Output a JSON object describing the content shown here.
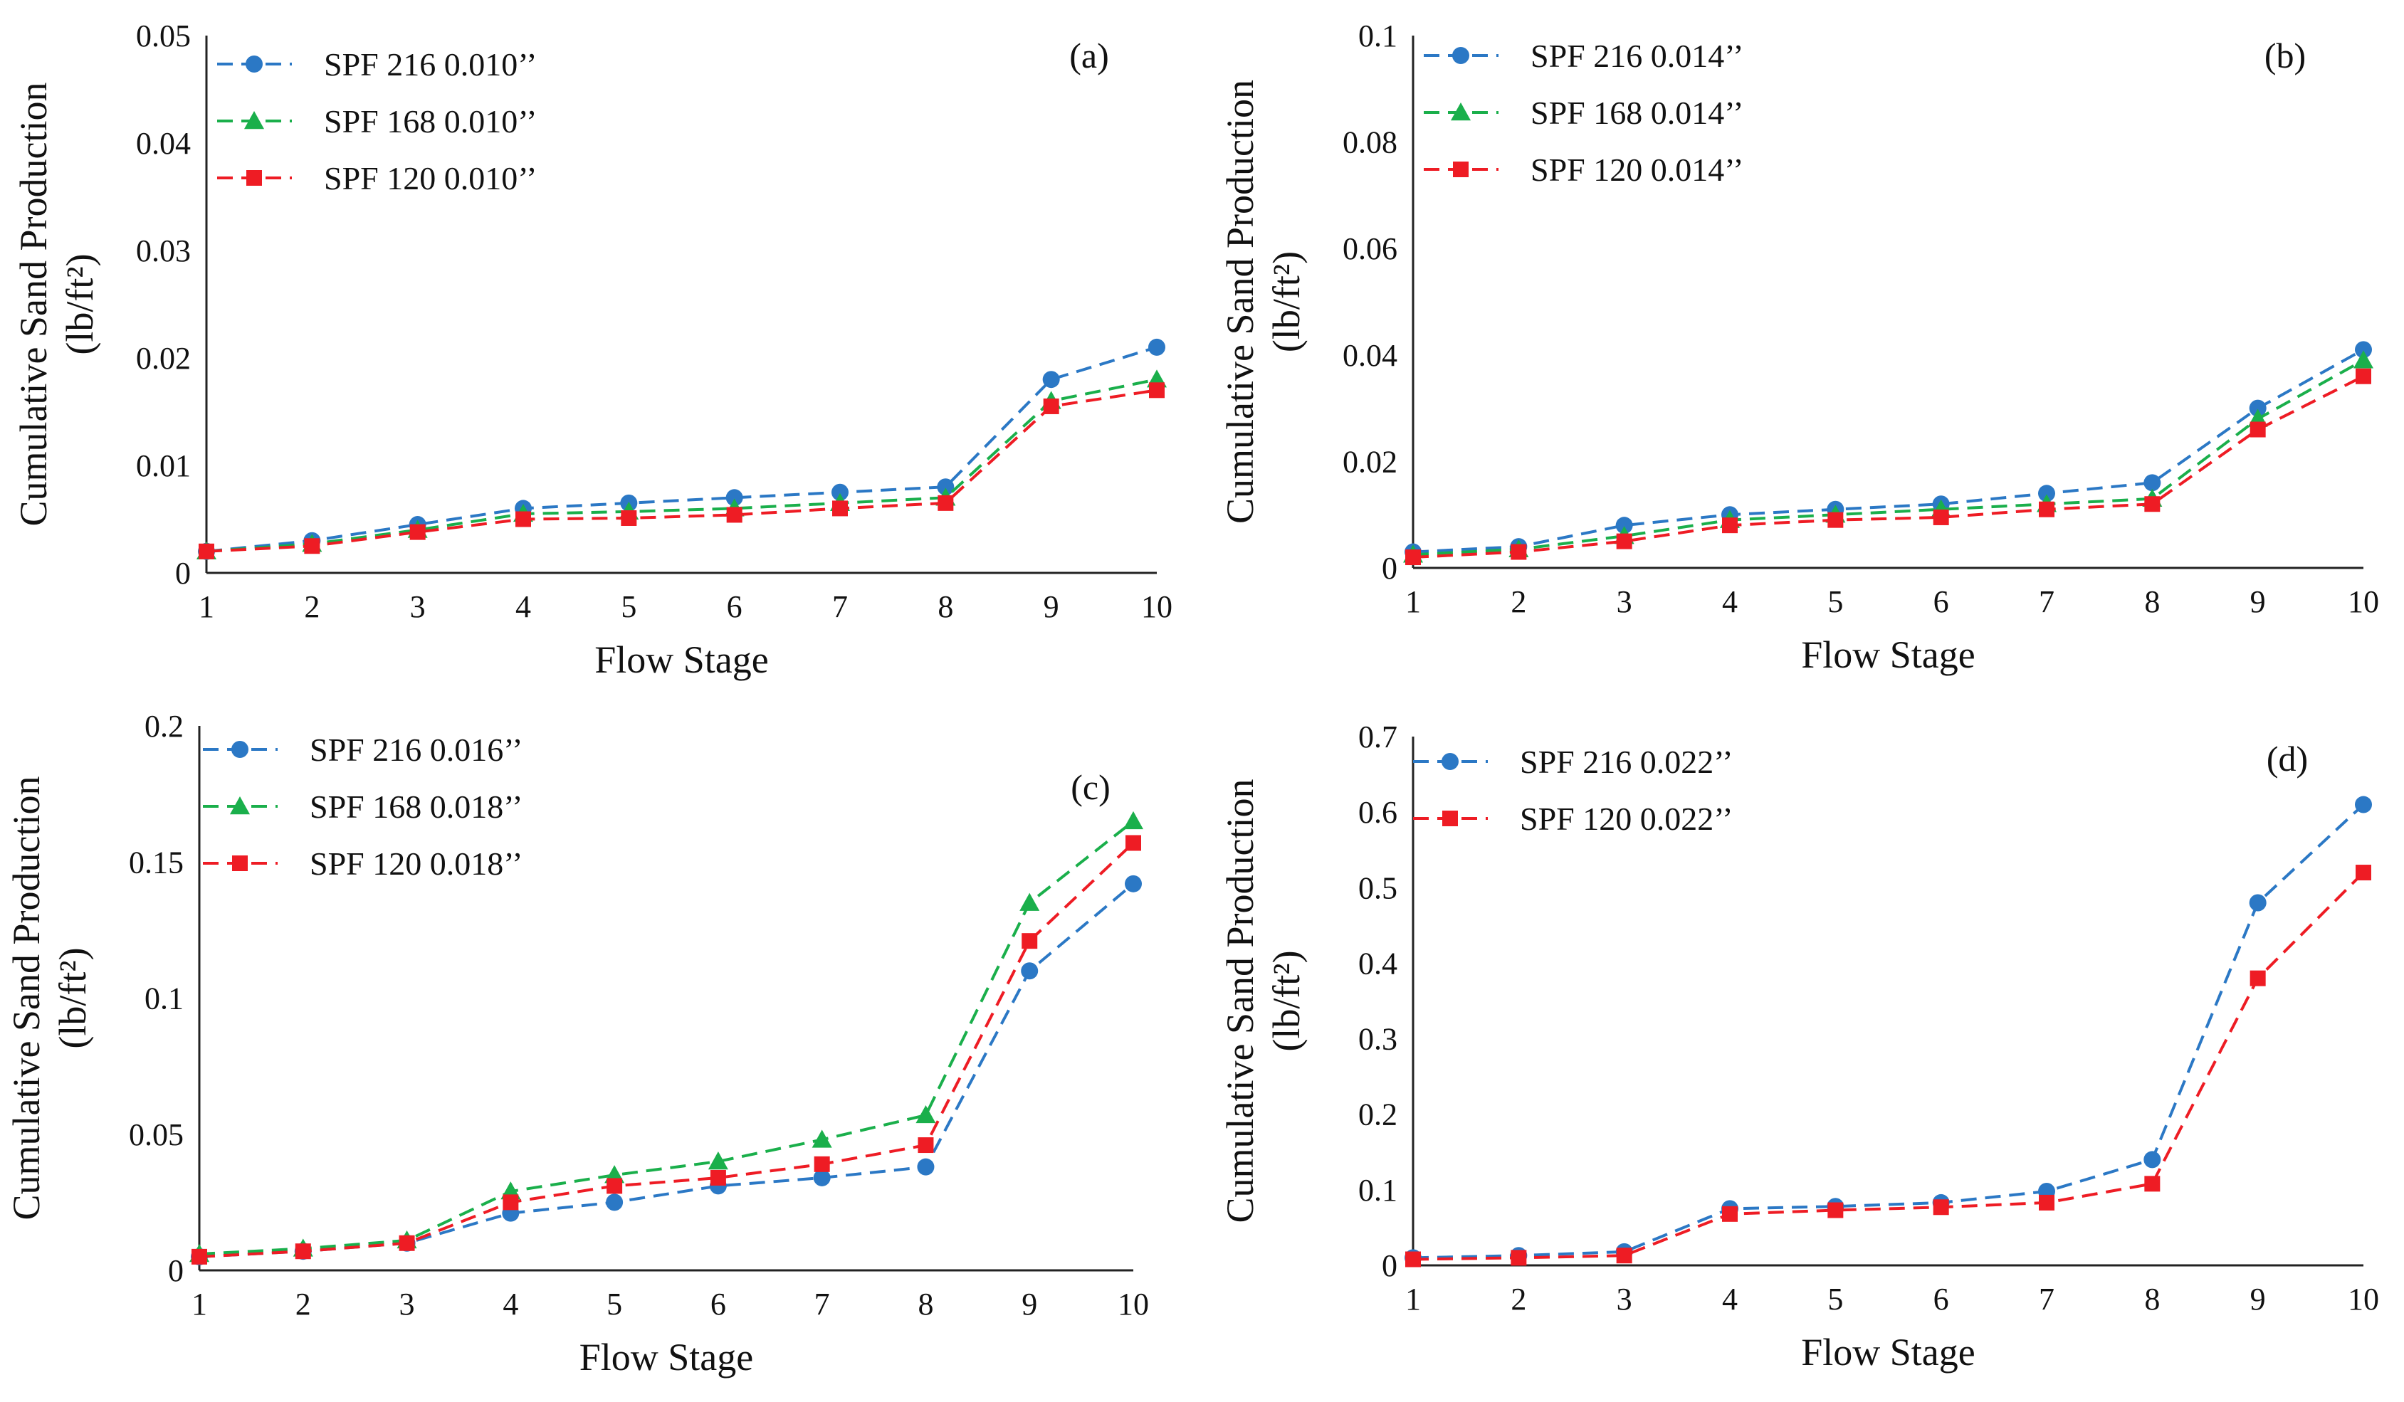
{
  "figure": "Cumulative sand production vs. flow stage",
  "colors": {
    "blue": "#2b78c5",
    "green": "#1aaf4b",
    "red": "#ee1c24"
  },
  "chart_data": [
    {
      "panel": "(a)",
      "type": "line",
      "xlabel": "Flow Stage",
      "ylabel_line1": "Cumulative Sand Production",
      "ylabel_line2": "(lb/ft²)",
      "x": [
        1,
        2,
        3,
        4,
        5,
        6,
        7,
        8,
        9,
        10
      ],
      "xticks": [
        "1",
        "2",
        "3",
        "4",
        "5",
        "6",
        "7",
        "8",
        "9",
        "10"
      ],
      "ylim": [
        0,
        0.05
      ],
      "yticks": [
        "0",
        "0.01",
        "0.02",
        "0.03",
        "0.04",
        "0.05"
      ],
      "legend_position": "top-left",
      "series": [
        {
          "name": "SPF 216 0.010’’",
          "color": "blue",
          "marker": "circle",
          "values": [
            0.002,
            0.003,
            0.0045,
            0.006,
            0.0065,
            0.007,
            0.0075,
            0.008,
            0.018,
            0.021
          ]
        },
        {
          "name": "SPF 168 0.010’’",
          "color": "green",
          "marker": "triangle",
          "values": [
            0.002,
            0.0027,
            0.004,
            0.0055,
            0.0057,
            0.006,
            0.0065,
            0.007,
            0.016,
            0.018
          ]
        },
        {
          "name": "SPF 120 0.010’’",
          "color": "red",
          "marker": "square",
          "values": [
            0.002,
            0.0025,
            0.0038,
            0.005,
            0.0051,
            0.0054,
            0.006,
            0.0065,
            0.0155,
            0.017
          ]
        }
      ]
    },
    {
      "panel": "(b)",
      "type": "line",
      "xlabel": "Flow Stage",
      "ylabel_line1": "Cumulative Sand Production",
      "ylabel_line2": "(lb/ft²)",
      "x": [
        1,
        2,
        3,
        4,
        5,
        6,
        7,
        8,
        9,
        10
      ],
      "xticks": [
        "1",
        "2",
        "3",
        "4",
        "5",
        "6",
        "7",
        "8",
        "9",
        "10"
      ],
      "ylim": [
        0,
        0.1
      ],
      "yticks": [
        "0",
        "0.02",
        "0.04",
        "0.06",
        "0.08",
        "0.1"
      ],
      "legend_position": "top-left",
      "series": [
        {
          "name": "SPF 216 0.014’’",
          "color": "blue",
          "marker": "circle",
          "values": [
            0.003,
            0.004,
            0.008,
            0.01,
            0.011,
            0.012,
            0.014,
            0.016,
            0.03,
            0.041
          ]
        },
        {
          "name": "SPF 168 0.014’’",
          "color": "green",
          "marker": "triangle",
          "values": [
            0.0025,
            0.0035,
            0.006,
            0.009,
            0.01,
            0.011,
            0.012,
            0.013,
            0.028,
            0.039
          ]
        },
        {
          "name": "SPF 120 0.014’’",
          "color": "red",
          "marker": "square",
          "values": [
            0.002,
            0.003,
            0.005,
            0.008,
            0.009,
            0.0095,
            0.011,
            0.012,
            0.026,
            0.036
          ]
        }
      ]
    },
    {
      "panel": "(c)",
      "type": "line",
      "xlabel": "Flow Stage",
      "ylabel_line1": "Cumulative Sand Production",
      "ylabel_line2": "(lb/ft²)",
      "x": [
        1,
        2,
        3,
        4,
        5,
        6,
        7,
        8,
        9,
        10
      ],
      "xticks": [
        "1",
        "2",
        "3",
        "4",
        "5",
        "6",
        "7",
        "8",
        "9",
        "10"
      ],
      "ylim": [
        0,
        0.2
      ],
      "yticks": [
        "0",
        "0.05",
        "0.1",
        "0.15",
        "0.2"
      ],
      "legend_position": "top-left",
      "series": [
        {
          "name": "SPF 216 0.016’’",
          "color": "blue",
          "marker": "circle",
          "values": [
            0.005,
            0.007,
            0.01,
            0.021,
            0.025,
            0.031,
            0.034,
            0.038,
            0.11,
            0.142
          ]
        },
        {
          "name": "SPF 168 0.018’’",
          "color": "green",
          "marker": "triangle",
          "values": [
            0.006,
            0.008,
            0.011,
            0.029,
            0.035,
            0.04,
            0.048,
            0.057,
            0.135,
            0.165
          ]
        },
        {
          "name": "SPF 120 0.018’’",
          "color": "red",
          "marker": "square",
          "values": [
            0.005,
            0.007,
            0.01,
            0.025,
            0.031,
            0.034,
            0.039,
            0.046,
            0.121,
            0.157
          ]
        }
      ]
    },
    {
      "panel": "(d)",
      "type": "line",
      "xlabel": "Flow Stage",
      "ylabel_line1": "Cumulative Sand Production",
      "ylabel_line2": "(lb/ft²)",
      "x": [
        1,
        2,
        3,
        4,
        5,
        6,
        7,
        8,
        9,
        10
      ],
      "xticks": [
        "1",
        "2",
        "3",
        "4",
        "5",
        "6",
        "7",
        "8",
        "9",
        "10"
      ],
      "ylim": [
        0,
        0.7
      ],
      "yticks": [
        "0",
        "0.1",
        "0.2",
        "0.3",
        "0.4",
        "0.5",
        "0.6",
        "0.7"
      ],
      "legend_position": "top-left",
      "series": [
        {
          "name": "SPF 216 0.022’’",
          "color": "blue",
          "marker": "circle",
          "values": [
            0.01,
            0.013,
            0.018,
            0.075,
            0.078,
            0.083,
            0.098,
            0.14,
            0.48,
            0.61
          ]
        },
        {
          "name": "SPF 120 0.022’’",
          "color": "red",
          "marker": "square",
          "values": [
            0.008,
            0.01,
            0.013,
            0.068,
            0.073,
            0.077,
            0.083,
            0.108,
            0.38,
            0.52
          ]
        }
      ]
    }
  ]
}
